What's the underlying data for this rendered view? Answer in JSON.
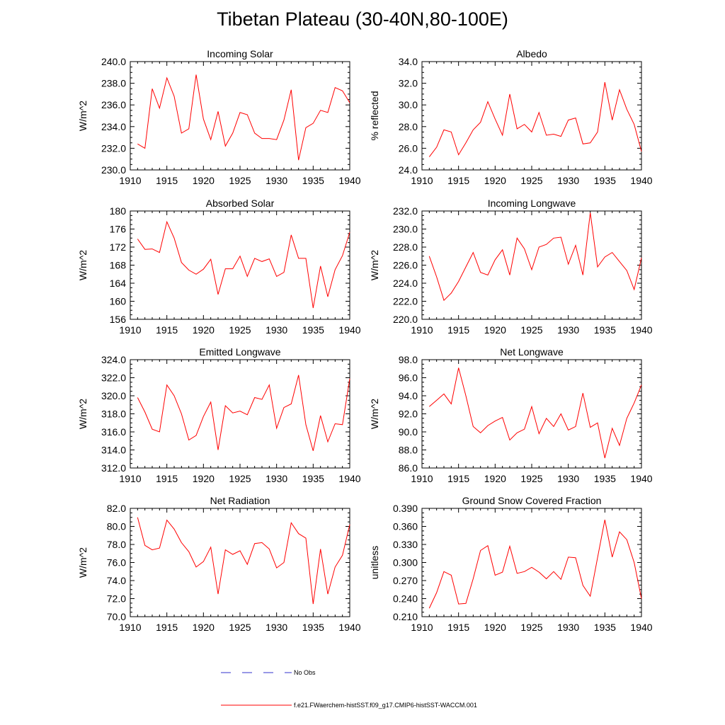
{
  "title": "Tibetan Plateau (30-40N,80-100E)",
  "legend": {
    "no_obs_label": "No Obs",
    "no_obs_color": "#3333cc",
    "model_label": "f.e21.FWaerchem-histSST.f09_g17.CMIP6-histSST-WACCM.001",
    "model_color": "#ff0000"
  },
  "chart_data": [
    {
      "type": "line",
      "title": "Incoming Solar",
      "ylabel": "W/m^2",
      "xlim": [
        1910,
        1940
      ],
      "ylim": [
        230,
        240
      ],
      "xticks": [
        "1910",
        "1915",
        "1920",
        "1925",
        "1930",
        "1935",
        "1940"
      ],
      "yticks": [
        "230.0",
        "232.0",
        "234.0",
        "236.0",
        "238.0",
        "240.0"
      ],
      "x": [
        1911,
        1912,
        1913,
        1914,
        1915,
        1916,
        1917,
        1918,
        1919,
        1920,
        1921,
        1922,
        1923,
        1924,
        1925,
        1926,
        1927,
        1928,
        1929,
        1930,
        1931,
        1932,
        1933,
        1934,
        1935,
        1936,
        1937,
        1938,
        1939,
        1940
      ],
      "values": [
        232.4,
        232.0,
        237.5,
        235.7,
        238.5,
        236.8,
        233.4,
        233.8,
        238.8,
        234.7,
        232.8,
        235.4,
        232.2,
        233.4,
        235.3,
        235.1,
        233.4,
        232.9,
        232.9,
        232.8,
        234.6,
        237.4,
        230.9,
        233.9,
        234.3,
        235.5,
        235.3,
        237.6,
        237.3,
        236.2
      ]
    },
    {
      "type": "line",
      "title": "Albedo",
      "ylabel": "% reflected",
      "xlim": [
        1910,
        1940
      ],
      "ylim": [
        24,
        34
      ],
      "xticks": [
        "1910",
        "1915",
        "1920",
        "1925",
        "1930",
        "1935",
        "1940"
      ],
      "yticks": [
        "24.0",
        "26.0",
        "28.0",
        "30.0",
        "32.0",
        "34.0"
      ],
      "x": [
        1911,
        1912,
        1913,
        1914,
        1915,
        1916,
        1917,
        1918,
        1919,
        1920,
        1921,
        1922,
        1923,
        1924,
        1925,
        1926,
        1927,
        1928,
        1929,
        1930,
        1931,
        1932,
        1933,
        1934,
        1935,
        1936,
        1937,
        1938,
        1939,
        1940
      ],
      "values": [
        25.2,
        26.1,
        27.7,
        27.5,
        25.4,
        26.5,
        27.7,
        28.4,
        30.3,
        28.7,
        27.2,
        31.0,
        27.8,
        28.2,
        27.5,
        29.3,
        27.2,
        27.3,
        27.1,
        28.6,
        28.8,
        26.4,
        26.5,
        27.5,
        32.1,
        28.6,
        31.4,
        29.6,
        28.2,
        25.7
      ]
    },
    {
      "type": "line",
      "title": "Absorbed Solar",
      "ylabel": "W/m^2",
      "xlim": [
        1910,
        1940
      ],
      "ylim": [
        156,
        180
      ],
      "xticks": [
        "1910",
        "1915",
        "1920",
        "1925",
        "1930",
        "1935",
        "1940"
      ],
      "yticks": [
        "156",
        "160",
        "164",
        "168",
        "172",
        "176",
        "180"
      ],
      "x": [
        1911,
        1912,
        1913,
        1914,
        1915,
        1916,
        1917,
        1918,
        1919,
        1920,
        1921,
        1922,
        1923,
        1924,
        1925,
        1926,
        1927,
        1928,
        1929,
        1930,
        1931,
        1932,
        1933,
        1934,
        1935,
        1936,
        1937,
        1938,
        1939,
        1940
      ],
      "values": [
        173.8,
        171.5,
        171.6,
        170.8,
        177.6,
        174.0,
        168.6,
        166.9,
        166.0,
        167.1,
        169.3,
        161.5,
        167.2,
        167.2,
        170.0,
        165.5,
        169.5,
        168.8,
        169.4,
        165.5,
        166.4,
        174.7,
        169.5,
        169.5,
        158.5,
        167.8,
        161.0,
        167.0,
        170.1,
        175.3
      ]
    },
    {
      "type": "line",
      "title": "Incoming Longwave",
      "ylabel": "W/m^2",
      "xlim": [
        1910,
        1940
      ],
      "ylim": [
        220,
        232
      ],
      "xticks": [
        "1910",
        "1915",
        "1920",
        "1925",
        "1930",
        "1935",
        "1940"
      ],
      "yticks": [
        "220.0",
        "222.0",
        "224.0",
        "226.0",
        "228.0",
        "230.0",
        "232.0"
      ],
      "x": [
        1911,
        1912,
        1913,
        1914,
        1915,
        1916,
        1917,
        1918,
        1919,
        1920,
        1921,
        1922,
        1923,
        1924,
        1925,
        1926,
        1927,
        1928,
        1929,
        1930,
        1931,
        1932,
        1933,
        1934,
        1935,
        1936,
        1937,
        1938,
        1939,
        1940
      ],
      "values": [
        227.0,
        224.7,
        222.1,
        222.9,
        224.2,
        225.8,
        227.4,
        225.2,
        224.9,
        226.6,
        227.7,
        224.9,
        229.0,
        227.8,
        225.5,
        228.0,
        228.3,
        229.0,
        229.1,
        226.1,
        228.2,
        224.9,
        231.8,
        225.8,
        226.9,
        227.4,
        226.4,
        225.4,
        223.3,
        226.8
      ]
    },
    {
      "type": "line",
      "title": "Emitted Longwave",
      "ylabel": "W/m^2",
      "xlim": [
        1910,
        1940
      ],
      "ylim": [
        312,
        324
      ],
      "xticks": [
        "1910",
        "1915",
        "1920",
        "1925",
        "1930",
        "1935",
        "1940"
      ],
      "yticks": [
        "312.0",
        "314.0",
        "316.0",
        "318.0",
        "320.0",
        "322.0",
        "324.0"
      ],
      "x": [
        1911,
        1912,
        1913,
        1914,
        1915,
        1916,
        1917,
        1918,
        1919,
        1920,
        1921,
        1922,
        1923,
        1924,
        1925,
        1926,
        1927,
        1928,
        1929,
        1930,
        1931,
        1932,
        1933,
        1934,
        1935,
        1936,
        1937,
        1938,
        1939,
        1940
      ],
      "values": [
        319.8,
        318.2,
        316.3,
        316.0,
        321.2,
        320.0,
        318.0,
        315.1,
        315.6,
        317.7,
        319.3,
        314.0,
        318.9,
        318.1,
        318.3,
        317.9,
        319.8,
        319.6,
        321.2,
        316.4,
        318.7,
        319.1,
        322.3,
        316.8,
        313.9,
        317.8,
        314.9,
        316.9,
        316.8,
        321.9
      ]
    },
    {
      "type": "line",
      "title": "Net Longwave",
      "ylabel": "W/m^2",
      "xlim": [
        1910,
        1940
      ],
      "ylim": [
        86,
        98
      ],
      "xticks": [
        "1910",
        "1915",
        "1920",
        "1925",
        "1930",
        "1935",
        "1940"
      ],
      "yticks": [
        "86.0",
        "88.0",
        "90.0",
        "92.0",
        "94.0",
        "96.0",
        "98.0"
      ],
      "x": [
        1911,
        1912,
        1913,
        1914,
        1915,
        1916,
        1917,
        1918,
        1919,
        1920,
        1921,
        1922,
        1923,
        1924,
        1925,
        1926,
        1927,
        1928,
        1929,
        1930,
        1931,
        1932,
        1933,
        1934,
        1935,
        1936,
        1937,
        1938,
        1939,
        1940
      ],
      "values": [
        92.8,
        93.5,
        94.2,
        93.1,
        97.1,
        94.0,
        90.6,
        89.9,
        90.7,
        91.2,
        91.6,
        89.1,
        89.9,
        90.3,
        92.8,
        89.8,
        91.5,
        90.6,
        92.0,
        90.2,
        90.6,
        94.3,
        90.5,
        91.0,
        87.1,
        90.4,
        88.5,
        91.5,
        93.2,
        95.2
      ]
    },
    {
      "type": "line",
      "title": "Net Radiation",
      "ylabel": "W/m^2",
      "xlim": [
        1910,
        1940
      ],
      "ylim": [
        70,
        82
      ],
      "xticks": [
        "1910",
        "1915",
        "1920",
        "1925",
        "1930",
        "1935",
        "1940"
      ],
      "yticks": [
        "70.0",
        "72.0",
        "74.0",
        "76.0",
        "78.0",
        "80.0",
        "82.0"
      ],
      "x": [
        1911,
        1912,
        1913,
        1914,
        1915,
        1916,
        1917,
        1918,
        1919,
        1920,
        1921,
        1922,
        1923,
        1924,
        1925,
        1926,
        1927,
        1928,
        1929,
        1930,
        1931,
        1932,
        1933,
        1934,
        1935,
        1936,
        1937,
        1938,
        1939,
        1940
      ],
      "values": [
        81.0,
        77.9,
        77.4,
        77.6,
        80.7,
        79.7,
        78.2,
        77.2,
        75.5,
        76.1,
        77.7,
        72.5,
        77.4,
        76.9,
        77.3,
        75.8,
        78.1,
        78.2,
        77.5,
        75.4,
        76.0,
        80.4,
        79.2,
        78.7,
        71.4,
        77.5,
        72.5,
        75.5,
        76.8,
        80.2
      ]
    },
    {
      "type": "line",
      "title": "Ground Snow Covered Fraction",
      "ylabel": "unitless",
      "xlim": [
        1910,
        1940
      ],
      "ylim": [
        0.21,
        0.39
      ],
      "xticks": [
        "1910",
        "1915",
        "1920",
        "1925",
        "1930",
        "1935",
        "1940"
      ],
      "yticks": [
        "0.210",
        "0.240",
        "0.270",
        "0.300",
        "0.330",
        "0.360",
        "0.390"
      ],
      "x": [
        1911,
        1912,
        1913,
        1914,
        1915,
        1916,
        1917,
        1918,
        1919,
        1920,
        1921,
        1922,
        1923,
        1924,
        1925,
        1926,
        1927,
        1928,
        1929,
        1930,
        1931,
        1932,
        1933,
        1934,
        1935,
        1936,
        1937,
        1938,
        1939,
        1940
      ],
      "values": [
        0.224,
        0.25,
        0.285,
        0.279,
        0.231,
        0.232,
        0.273,
        0.32,
        0.328,
        0.279,
        0.284,
        0.327,
        0.282,
        0.285,
        0.292,
        0.284,
        0.273,
        0.285,
        0.272,
        0.309,
        0.308,
        0.262,
        0.244,
        0.308,
        0.371,
        0.309,
        0.351,
        0.338,
        0.3,
        0.24
      ]
    }
  ]
}
